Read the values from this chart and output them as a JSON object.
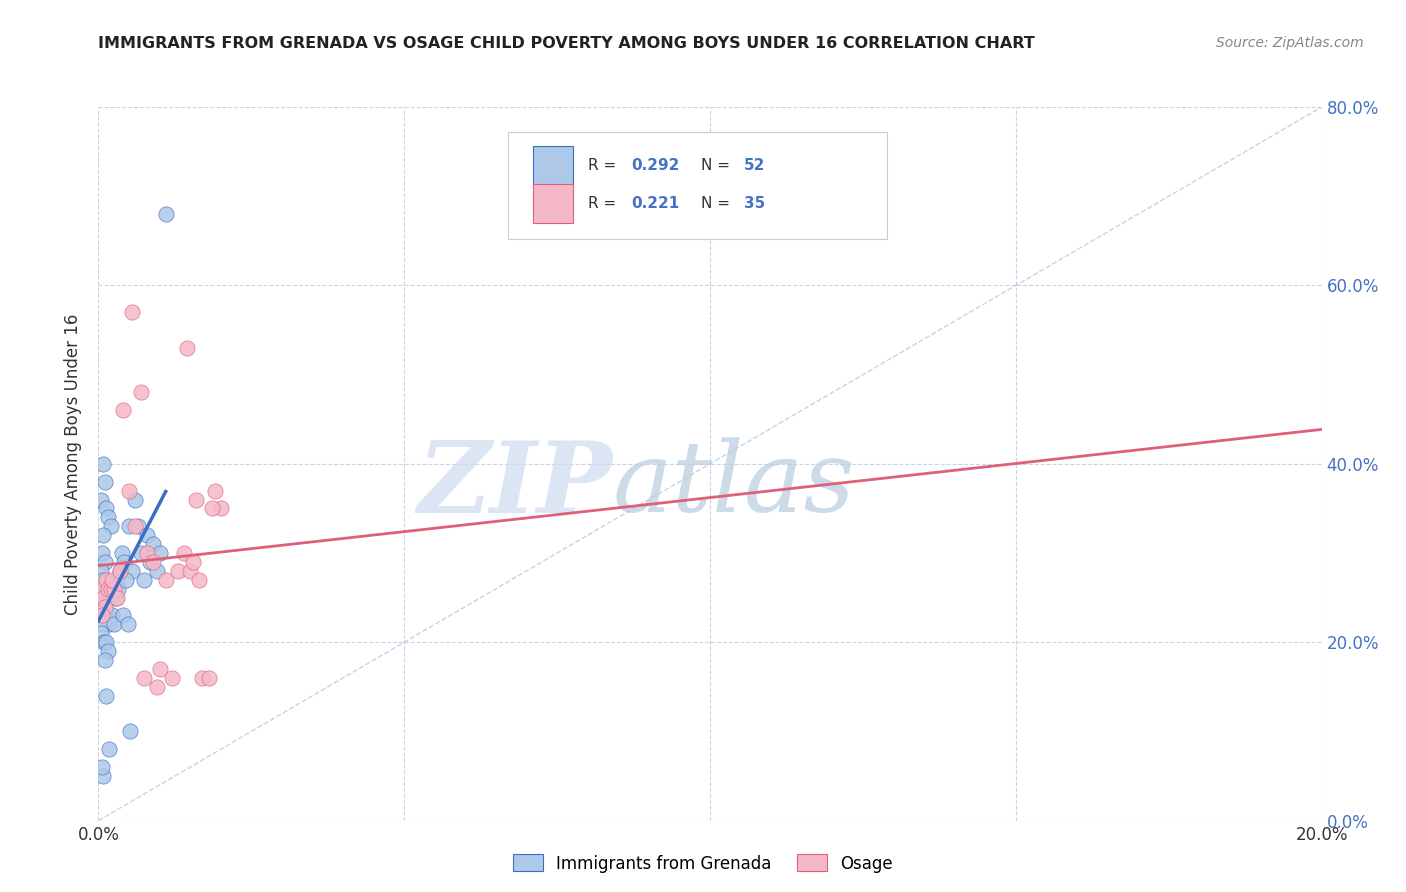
{
  "title": "IMMIGRANTS FROM GRENADA VS OSAGE CHILD POVERTY AMONG BOYS UNDER 16 CORRELATION CHART",
  "source": "Source: ZipAtlas.com",
  "ylabel": "Child Poverty Among Boys Under 16",
  "xlim": [
    0.0,
    0.2
  ],
  "ylim": [
    0.0,
    0.8
  ],
  "xticks": [
    0.0,
    0.05,
    0.1,
    0.15,
    0.2
  ],
  "yticks": [
    0.0,
    0.2,
    0.4,
    0.6,
    0.8
  ],
  "xtick_labels": [
    "0.0%",
    "",
    "",
    "",
    "20.0%"
  ],
  "ytick_labels_right": [
    "0.0%",
    "20.0%",
    "40.0%",
    "60.0%",
    "80.0%"
  ],
  "legend_label1": "Immigrants from Grenada",
  "legend_label2": "Osage",
  "r1": "0.292",
  "n1": "52",
  "r2": "0.221",
  "n2": "35",
  "color1": "#adc8e8",
  "color2": "#f5b8c8",
  "line_color1": "#3a6fc4",
  "line_color2": "#e0607a",
  "watermark_zip_color": "#c8d8ee",
  "watermark_atlas_color": "#b8cce4",
  "background_color": "#ffffff",
  "grid_color": "#c8d4e8",
  "blue_x": [
    0.0008,
    0.001,
    0.0005,
    0.0012,
    0.0015,
    0.002,
    0.0008,
    0.0006,
    0.001,
    0.0004,
    0.0007,
    0.0003,
    0.0009,
    0.0006,
    0.0004,
    0.0011,
    0.0014,
    0.0018,
    0.0007,
    0.0005,
    0.0009,
    0.0013,
    0.0016,
    0.001,
    0.0022,
    0.0025,
    0.003,
    0.0035,
    0.0028,
    0.0032,
    0.0038,
    0.0042,
    0.005,
    0.006,
    0.007,
    0.0055,
    0.0045,
    0.0065,
    0.008,
    0.009,
    0.01,
    0.0085,
    0.0095,
    0.0075,
    0.004,
    0.0048,
    0.0052,
    0.011,
    0.0012,
    0.0018,
    0.0008,
    0.0006
  ],
  "blue_y": [
    0.4,
    0.38,
    0.36,
    0.35,
    0.34,
    0.33,
    0.32,
    0.3,
    0.29,
    0.28,
    0.27,
    0.26,
    0.25,
    0.25,
    0.24,
    0.24,
    0.23,
    0.22,
    0.22,
    0.21,
    0.2,
    0.2,
    0.19,
    0.18,
    0.23,
    0.22,
    0.27,
    0.28,
    0.25,
    0.26,
    0.3,
    0.29,
    0.33,
    0.36,
    0.3,
    0.28,
    0.27,
    0.33,
    0.32,
    0.31,
    0.3,
    0.29,
    0.28,
    0.27,
    0.23,
    0.22,
    0.1,
    0.68,
    0.14,
    0.08,
    0.05,
    0.06
  ],
  "pink_x": [
    0.0005,
    0.0008,
    0.001,
    0.0006,
    0.0012,
    0.0015,
    0.002,
    0.0025,
    0.003,
    0.0022,
    0.0035,
    0.004,
    0.005,
    0.006,
    0.007,
    0.008,
    0.009,
    0.01,
    0.011,
    0.012,
    0.013,
    0.014,
    0.015,
    0.016,
    0.017,
    0.018,
    0.019,
    0.02,
    0.0155,
    0.0165,
    0.0185,
    0.0145,
    0.0055,
    0.0075,
    0.0095
  ],
  "pink_y": [
    0.26,
    0.25,
    0.24,
    0.23,
    0.27,
    0.26,
    0.26,
    0.26,
    0.25,
    0.27,
    0.28,
    0.46,
    0.37,
    0.33,
    0.48,
    0.3,
    0.29,
    0.17,
    0.27,
    0.16,
    0.28,
    0.3,
    0.28,
    0.36,
    0.16,
    0.16,
    0.37,
    0.35,
    0.29,
    0.27,
    0.35,
    0.53,
    0.57,
    0.16,
    0.15
  ]
}
